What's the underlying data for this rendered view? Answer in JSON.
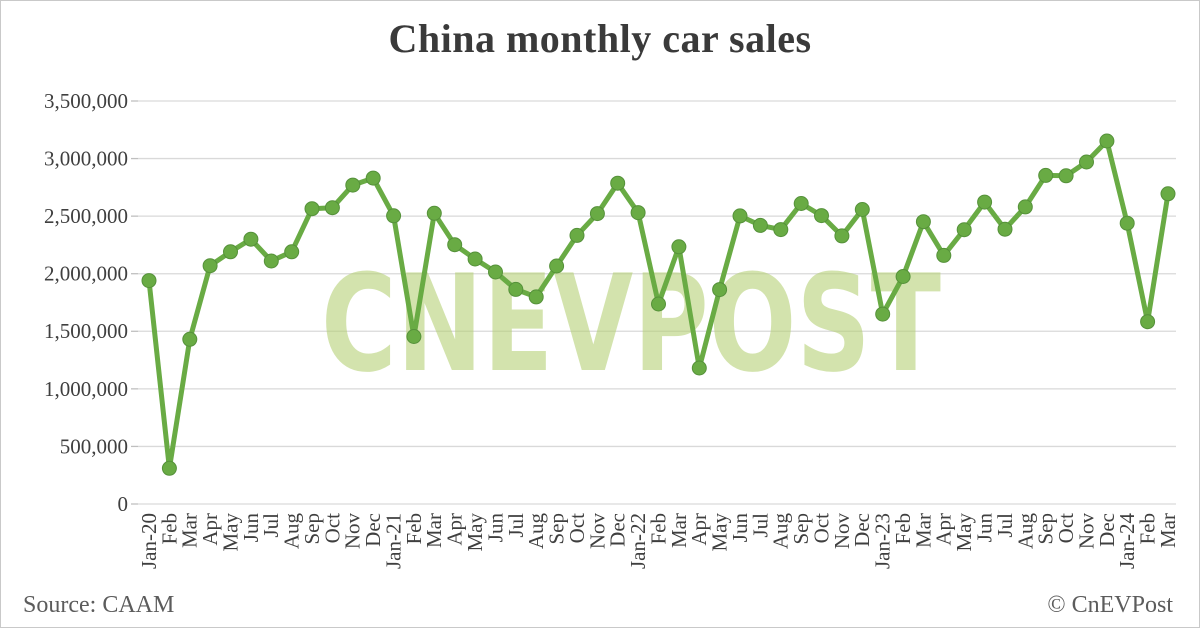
{
  "title": "China monthly car sales",
  "watermark": "CNEVPOST",
  "footer": {
    "source": "Source: CAAM",
    "copyright": "© CnEVPost"
  },
  "colors": {
    "line": "#69ab44",
    "line_edge": "#55913a",
    "watermark_fill": "#b4cf72",
    "grid": "#d9d9d9",
    "tick": "#bfbfbf",
    "axis_text": "#3f3f3f",
    "footer_text": "#5c5c5c",
    "title_text": "#3a3a3a"
  },
  "chart_data": {
    "type": "line",
    "title": "China monthly car sales",
    "xlabel": "",
    "ylabel": "",
    "legend": "none",
    "grid": "horizontal",
    "ylim": [
      0,
      3500000
    ],
    "ytick_interval": 500000,
    "ytick_labels": [
      "0",
      "500,000",
      "1,000,000",
      "1,500,000",
      "2,000,000",
      "2,500,000",
      "3,000,000",
      "3,500,000"
    ],
    "categories": [
      "Jan-20",
      "Feb",
      "Mar",
      "Apr",
      "May",
      "Jun",
      "Jul",
      "Aug",
      "Sep",
      "Oct",
      "Nov",
      "Dec",
      "Jan-21",
      "Feb",
      "Mar",
      "Apr",
      "May",
      "Jun",
      "Jul",
      "Aug",
      "Sep",
      "Oct",
      "Nov",
      "Dec",
      "Jan-22",
      "Feb",
      "Mar",
      "Apr",
      "May",
      "Jun",
      "Jul",
      "Aug",
      "Sep",
      "Oct",
      "Nov",
      "Dec",
      "Jan-23",
      "Feb",
      "Mar",
      "Apr",
      "May",
      "Jun",
      "Jul",
      "Aug",
      "Sep",
      "Oct",
      "Nov",
      "Dec",
      "Jan-24",
      "Feb",
      "Mar"
    ],
    "values": [
      1940000,
      310000,
      1430000,
      2070000,
      2190000,
      2300000,
      2110000,
      2190000,
      2565000,
      2573000,
      2770000,
      2830000,
      2503000,
      1455000,
      2525000,
      2252000,
      2128000,
      2015000,
      1864000,
      1799000,
      2067000,
      2333000,
      2522000,
      2786000,
      2531000,
      1737000,
      2234000,
      1181000,
      1862000,
      2502000,
      2420000,
      2383000,
      2610000,
      2505000,
      2328000,
      2558000,
      1649000,
      1976000,
      2452000,
      2159000,
      2382000,
      2622000,
      2387000,
      2580000,
      2854000,
      2850000,
      2970000,
      3153000,
      2439000,
      1583000,
      2694000
    ]
  }
}
